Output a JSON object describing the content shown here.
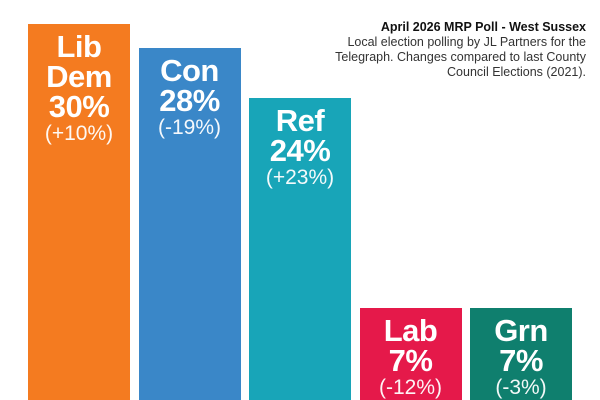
{
  "chart_data": {
    "type": "bar",
    "title": "April 2026 MRP Poll - West Sussex",
    "subtitle": "Local election polling by JL Partners for the Telegraph. Changes compared to last County Council Elections (2021).",
    "categories": [
      "Lib Dem",
      "Con",
      "Ref",
      "Lab",
      "Grn"
    ],
    "values": [
      30,
      28,
      24,
      7,
      7
    ],
    "value_labels": [
      "30%",
      "28%",
      "24%",
      "7%",
      "7%"
    ],
    "changes": [
      "(+10%)",
      "(-19%)",
      "(+23%)",
      "(-12%)",
      "(-3%)"
    ],
    "colors": [
      "#F47B20",
      "#3A87C8",
      "#18A5B8",
      "#E5194A",
      "#0F7F6E"
    ],
    "ylim": [
      0,
      31
    ],
    "grid": false
  }
}
